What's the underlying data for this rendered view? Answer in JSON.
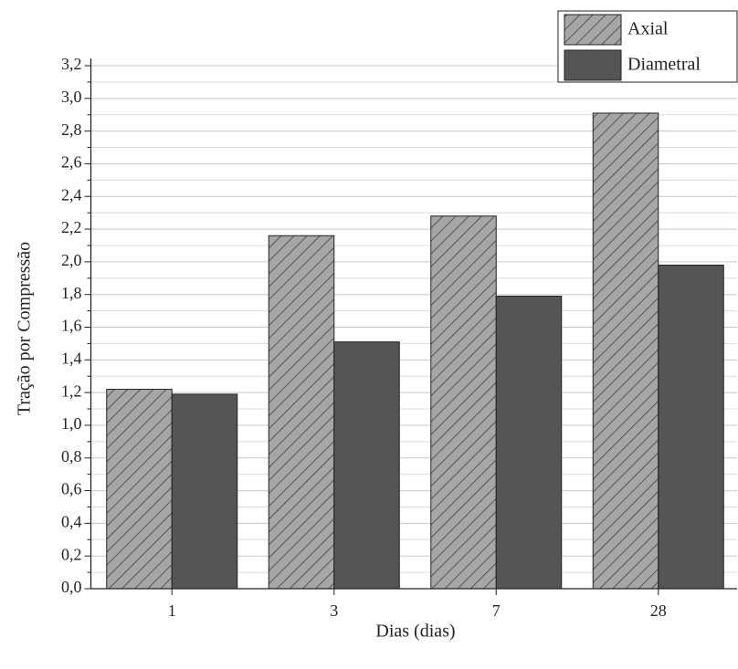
{
  "chart_data": {
    "type": "bar",
    "x_label": "Dias (dias)",
    "y_label": "Tração por Compressão",
    "categories": [
      "1",
      "3",
      "7",
      "28"
    ],
    "series": [
      {
        "name": "Axial",
        "color": "#a6a6a6",
        "hatch": true,
        "values": [
          1.22,
          2.16,
          2.28,
          2.91
        ]
      },
      {
        "name": "Diametral",
        "color": "#555555",
        "hatch": false,
        "values": [
          1.19,
          1.51,
          1.79,
          1.98
        ]
      }
    ],
    "ylim": [
      0,
      3.2
    ],
    "yticks": [
      {
        "value": 0,
        "label": "0,0"
      },
      {
        "value": 0.2,
        "label": "0,2"
      },
      {
        "value": 0.4,
        "label": "0,4"
      },
      {
        "value": 0.6,
        "label": "0,6"
      },
      {
        "value": 0.8,
        "label": "0,8"
      },
      {
        "value": 1.0,
        "label": "1,0"
      },
      {
        "value": 1.2,
        "label": "1,2"
      },
      {
        "value": 1.4,
        "label": "1,4"
      },
      {
        "value": 1.6,
        "label": "1,6"
      },
      {
        "value": 1.8,
        "label": "1,8"
      },
      {
        "value": 2.0,
        "label": "2,0"
      },
      {
        "value": 2.2,
        "label": "2,2"
      },
      {
        "value": 2.4,
        "label": "2,4"
      },
      {
        "value": 2.6,
        "label": "2,6"
      },
      {
        "value": 2.8,
        "label": "2,8"
      },
      {
        "value": 3.0,
        "label": "3,0"
      },
      {
        "value": 3.2,
        "label": "3,2"
      }
    ],
    "minor_yticks": [
      0.1,
      0.3,
      0.5,
      0.7,
      0.9,
      1.1,
      1.3,
      1.5,
      1.7,
      1.9,
      2.1,
      2.3,
      2.5,
      2.7,
      2.9,
      3.1
    ],
    "grid": true,
    "legend": "top-right"
  }
}
